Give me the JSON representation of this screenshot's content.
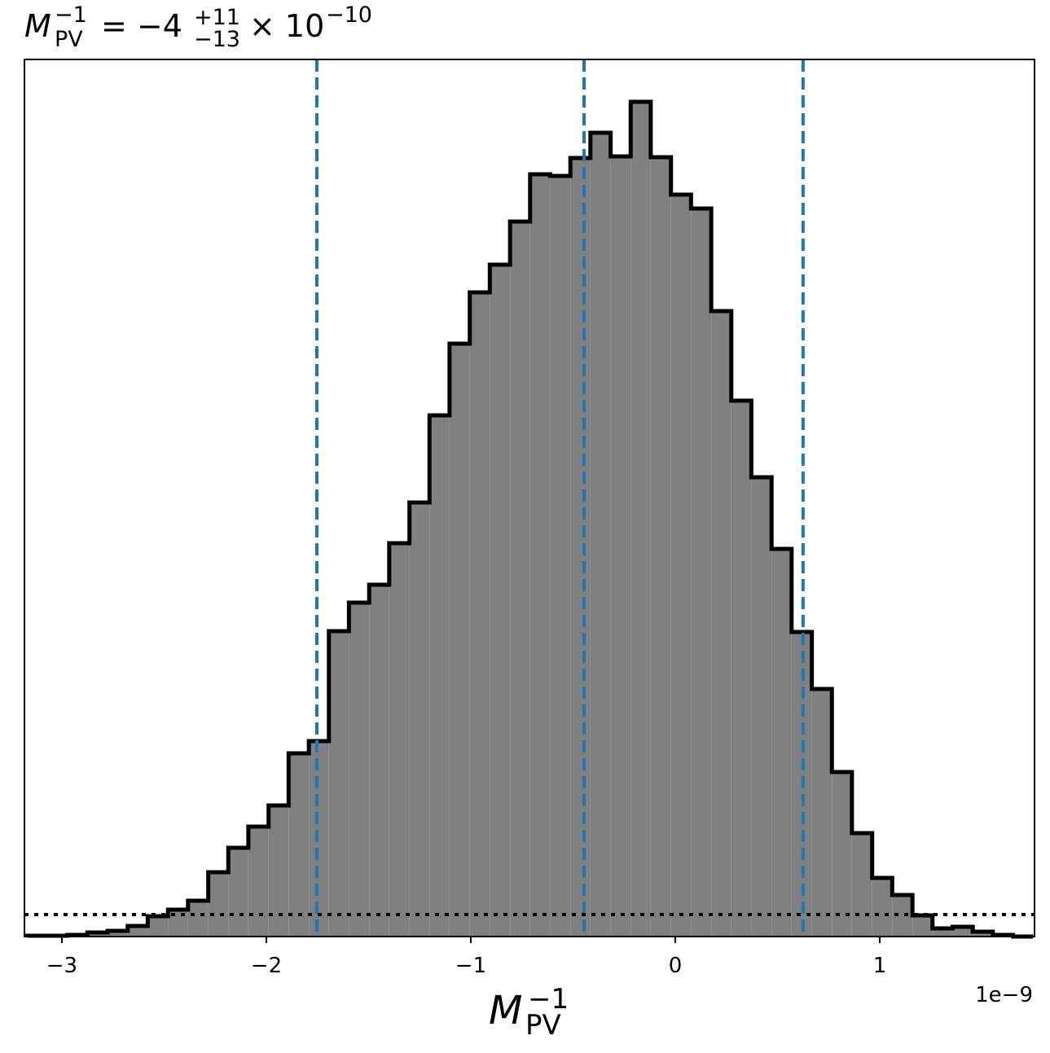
{
  "chart_data": {
    "type": "histogram",
    "title": {
      "base": "M",
      "sub": "PV",
      "sup": "−1",
      "rest": "= −4",
      "upper": "+11",
      "lower": "−13",
      "times": "× 10",
      "exp": "−10"
    },
    "xlabel": {
      "base": "M",
      "sub": "PV",
      "sup": "−1"
    },
    "x_offset_label": "1e−9",
    "bins": [
      -3.17,
      -3.072,
      -2.973,
      -2.875,
      -2.776,
      -2.678,
      -2.58,
      -2.481,
      -2.383,
      -2.284,
      -2.186,
      -2.088,
      -1.989,
      -1.891,
      -1.792,
      -1.694,
      -1.596,
      -1.497,
      -1.399,
      -1.3,
      -1.202,
      -1.104,
      -1.005,
      -0.907,
      -0.808,
      -0.71,
      -0.612,
      -0.513,
      -0.415,
      -0.316,
      -0.218,
      -0.12,
      -0.021,
      0.077,
      0.176,
      0.274,
      0.372,
      0.471,
      0.569,
      0.668,
      0.766,
      0.864,
      0.963,
      1.061,
      1.16,
      1.258,
      1.356,
      1.455,
      1.553,
      1.652,
      1.75
    ],
    "values": [
      1,
      1,
      2,
      5,
      7,
      13,
      25,
      33,
      44,
      79,
      109,
      135,
      161,
      225,
      240,
      375,
      410,
      432,
      483,
      533,
      640,
      728,
      791,
      825,
      878,
      936,
      934,
      956,
      987,
      958,
      1025,
      957,
      911,
      894,
      768,
      658,
      564,
      476,
      374,
      304,
      202,
      127,
      72,
      51,
      26,
      10,
      12,
      6,
      2,
      0
    ],
    "color": "#808080",
    "edge_color": "#000000",
    "xlim": [
      -3.183,
      1.757
    ],
    "ylim": [
      0,
      1077
    ],
    "xticks": [
      {
        "value": -3,
        "label": "−3"
      },
      {
        "value": -2,
        "label": "−2"
      },
      {
        "value": -1,
        "label": "−1"
      },
      0,
      1
    ],
    "vlines": {
      "values": [
        -1.753,
        -0.446,
        0.625
      ],
      "color": "#1f77b4",
      "style": "dashed"
    },
    "hline": {
      "value": 27,
      "color": "#000000",
      "style": "dotted"
    }
  }
}
